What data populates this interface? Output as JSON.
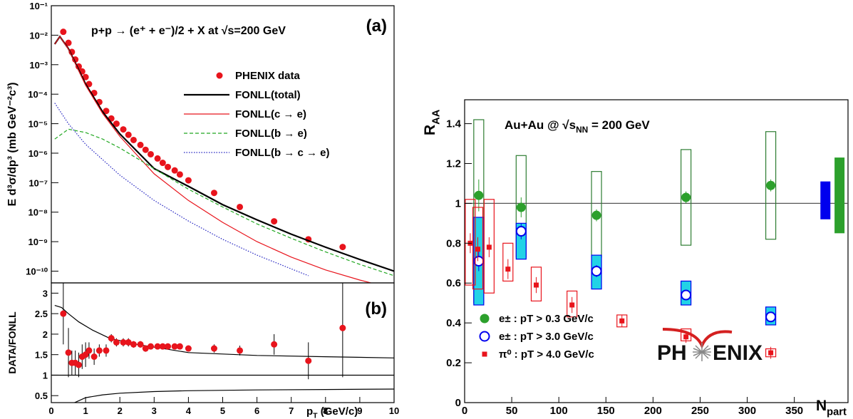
{
  "chart_data": [
    {
      "type": "line",
      "label": "(a)",
      "title": "p+p → (e⁺ + e⁻)/2 + X at √s=200 GeV",
      "y_label": "E d³σ/dp³ (mb GeV⁻²c³)",
      "log_y": true,
      "legend": "upper right",
      "xlim": [
        0,
        10
      ],
      "ylim": [
        4e-11,
        0.1
      ],
      "yticks": [
        {
          "value": 1e-10,
          "label": "10⁻¹⁰"
        },
        {
          "value": 1e-09,
          "label": "10⁻⁹"
        },
        {
          "value": 1e-08,
          "label": "10⁻⁸"
        },
        {
          "value": 1e-07,
          "label": "10⁻⁷"
        },
        {
          "value": 1e-06,
          "label": "10⁻⁶"
        },
        {
          "value": 1e-05,
          "label": "10⁻⁵"
        },
        {
          "value": 0.0001,
          "label": "10⁻⁴"
        },
        {
          "value": 0.001,
          "label": "10⁻³"
        },
        {
          "value": 0.01,
          "label": "10⁻²"
        },
        {
          "value": 0.1,
          "label": "10⁻¹"
        }
      ],
      "series": [
        {
          "name": "PHENIX data",
          "color": "#e8141c",
          "style": "markers",
          "x": [
            0.35,
            0.5,
            0.6,
            0.7,
            0.8,
            0.9,
            1.0,
            1.1,
            1.25,
            1.4,
            1.6,
            1.75,
            1.9,
            2.1,
            2.25,
            2.4,
            2.6,
            2.75,
            2.9,
            3.1,
            3.25,
            3.4,
            3.6,
            3.75,
            4.0,
            4.75,
            5.5,
            6.5,
            7.5,
            8.5
          ],
          "values": [
            0.013,
            0.0055,
            0.0027,
            0.0015,
            0.00087,
            0.00059,
            0.00038,
            0.00022,
            0.00011,
            5.4e-05,
            2.7e-05,
            1.5e-05,
            1e-05,
            6.4e-06,
            4.2e-06,
            2.8e-06,
            1.9e-06,
            1.3e-06,
            9.2e-07,
            6.6e-07,
            4.7e-07,
            3.4e-07,
            2.6e-07,
            1.9e-07,
            1.2e-07,
            4.5e-08,
            1.5e-08,
            4.9e-09,
            1.2e-09,
            6.6e-10
          ]
        },
        {
          "name": "FONLL(total)",
          "color": "#000000",
          "style": "solid",
          "x": [
            0.1,
            0.25,
            0.5,
            1,
            1.5,
            2,
            3,
            4,
            5,
            6,
            7,
            8,
            9,
            10
          ],
          "values": [
            0.005,
            0.009,
            0.0035,
            0.00022,
            2.5e-05,
            4.5e-06,
            3e-07,
            7.5e-08,
            1.8e-08,
            5.5e-09,
            1.8e-09,
            6.5e-10,
            2.5e-10,
            1e-10
          ]
        },
        {
          "name": "FONLL(c → e)",
          "color": "#e8141c",
          "style": "solid",
          "x": [
            0.1,
            0.25,
            0.5,
            1,
            1.5,
            2,
            3,
            4,
            5,
            6,
            7,
            8,
            9,
            10
          ],
          "values": [
            0.005,
            0.009,
            0.0034,
            0.0002,
            2.2e-05,
            3.7e-06,
            2e-07,
            2.5e-08,
            4.5e-09,
            1e-09,
            3e-10,
            1.1e-10,
            5e-11,
            2.5e-11
          ]
        },
        {
          "name": "FONLL(b → e)",
          "color": "#22a822",
          "style": "dashed",
          "x": [
            0.1,
            0.5,
            1,
            1.5,
            2,
            3,
            4,
            5,
            6,
            7,
            8,
            9,
            10
          ],
          "values": [
            3e-06,
            6.5e-06,
            5e-06,
            3e-06,
            1.5e-06,
            3e-07,
            6e-08,
            1.5e-08,
            4e-09,
            1.3e-09,
            4.5e-10,
            1.7e-10,
            7e-11
          ]
        },
        {
          "name": "FONLL(b → c → e)",
          "color": "#2020c0",
          "style": "dotted",
          "x": [
            0.1,
            0.5,
            1,
            1.5,
            2,
            3,
            4,
            5,
            6,
            7,
            7.5
          ],
          "values": [
            5e-05,
            1e-05,
            2e-06,
            6e-07,
            1.8e-07,
            2.5e-08,
            5e-09,
            1.2e-09,
            3.5e-10,
            1.2e-10,
            7e-11
          ]
        }
      ]
    },
    {
      "type": "line",
      "label": "(b)",
      "y_label": "DATA/FONLL",
      "x_label": {
        "main": "p",
        "sub": "T",
        "rest": " (GeV/c)"
      },
      "xlim": [
        0,
        10
      ],
      "xticks": [
        0,
        1,
        2,
        3,
        4,
        5,
        6,
        7,
        8,
        9,
        10
      ],
      "ylim": [
        0.33,
        3.25
      ],
      "yticks": [
        0.5,
        1,
        1.5,
        2,
        2.5,
        3
      ],
      "series": [
        {
          "color": "#000000",
          "style": "solid",
          "x": [
            0,
            10
          ],
          "values": [
            1,
            1
          ]
        },
        {
          "color": "#000000",
          "style": "solid",
          "x": [
            0.1,
            0.3,
            0.5,
            0.8,
            1.2,
            1.7,
            2.5,
            4,
            6,
            8,
            10
          ],
          "values": [
            2.7,
            2.65,
            2.5,
            2.3,
            2.1,
            1.9,
            1.75,
            1.55,
            1.48,
            1.45,
            1.42
          ]
        },
        {
          "color": "#000000",
          "style": "solid",
          "x": [
            0.6,
            1,
            1.5,
            2,
            3,
            4,
            6,
            8,
            10
          ],
          "values": [
            0.3,
            0.45,
            0.52,
            0.56,
            0.6,
            0.62,
            0.64,
            0.65,
            0.66
          ]
        },
        {
          "color": "#e8141c",
          "style": "markers",
          "x": [
            0.35,
            0.5,
            0.6,
            0.7,
            0.8,
            0.9,
            1.0,
            1.1,
            1.25,
            1.4,
            1.6,
            1.75,
            1.9,
            2.1,
            2.25,
            2.4,
            2.6,
            2.75,
            2.9,
            3.1,
            3.25,
            3.4,
            3.6,
            3.75,
            4.0,
            4.75,
            5.5,
            6.5,
            7.5,
            8.5
          ],
          "values": [
            2.5,
            1.55,
            1.3,
            1.3,
            1.25,
            1.45,
            1.5,
            1.6,
            1.45,
            1.6,
            1.6,
            1.9,
            1.8,
            1.8,
            1.8,
            1.75,
            1.75,
            1.65,
            1.7,
            1.7,
            1.7,
            1.7,
            1.7,
            1.7,
            1.65,
            1.65,
            1.6,
            1.75,
            1.35,
            2.15
          ],
          "errors": [
            0.75,
            0.6,
            0.3,
            0.3,
            0.3,
            0.3,
            0.3,
            0.2,
            0.2,
            0.15,
            0.15,
            0.1,
            0.1,
            0.1,
            0.1,
            0.08,
            0.08,
            0.08,
            0.06,
            0.06,
            0.06,
            0.06,
            0.06,
            0.06,
            0.06,
            0.1,
            0.12,
            0.25,
            0.45,
            1.2
          ]
        }
      ]
    },
    {
      "type": "scatter",
      "title": {
        "main": "Au+Au @ √s",
        "sub": "NN",
        "rest": " = 200 GeV"
      },
      "x_label": {
        "main": "N",
        "sub": "part"
      },
      "y_label": {
        "main": "R",
        "sub": "AA"
      },
      "xlim": [
        0,
        407
      ],
      "xticks": [
        0,
        50,
        100,
        150,
        200,
        250,
        300,
        350
      ],
      "ylim": [
        0,
        1.52
      ],
      "yticks": [
        0,
        0.2,
        0.4,
        0.6,
        0.8,
        1,
        1.2,
        1.4
      ],
      "reference": 1,
      "legend": "lower left",
      "series": [
        {
          "name": "e± : pT > 0.3 GeV/c",
          "marker": "circle-filled",
          "color": "#2ca02c",
          "box_color": "#2e7d32",
          "box_fill": "none",
          "x": [
            15,
            60,
            140,
            235,
            325
          ],
          "values": [
            1.04,
            0.98,
            0.94,
            1.03,
            1.09
          ],
          "errors": [
            0.08,
            0.05,
            0.03,
            0.03,
            0.03
          ],
          "box_low": [
            0.5,
            0.73,
            0.73,
            0.79,
            0.82
          ],
          "box_high": [
            1.42,
            1.24,
            1.16,
            1.27,
            1.36
          ]
        },
        {
          "name": "e± : pT > 3.0 GeV/c",
          "marker": "circle-open",
          "color": "#0000ee",
          "box_color": "#0000ee",
          "box_fill": "#22d3e6",
          "x": [
            15,
            60,
            140,
            235,
            325
          ],
          "values": [
            0.71,
            0.86,
            0.66,
            0.54,
            0.43
          ],
          "errors": [
            0.05,
            0.04,
            0.03,
            0.02,
            0.02
          ],
          "box_low": [
            0.49,
            0.72,
            0.57,
            0.49,
            0.39
          ],
          "box_high": [
            0.93,
            0.9,
            0.74,
            0.61,
            0.48
          ]
        },
        {
          "name": "π⁰ : pT > 4.0 GeV/c",
          "marker": "square",
          "color": "#e8141c",
          "box_color": "#e8141c",
          "box_fill": "none",
          "x": [
            6,
            14,
            26,
            46,
            76,
            114,
            167,
            235,
            325
          ],
          "values": [
            0.8,
            0.77,
            0.78,
            0.67,
            0.59,
            0.49,
            0.41,
            0.33,
            0.25
          ],
          "errors": [
            0.05,
            0.06,
            0.05,
            0.05,
            0.04,
            0.04,
            0.03,
            0.03,
            0.03
          ],
          "box_low": [
            0.59,
            0.57,
            0.55,
            0.61,
            0.51,
            0.43,
            0.38,
            0.31,
            0.23
          ],
          "box_high": [
            1.02,
            0.98,
            1.02,
            0.8,
            0.68,
            0.56,
            0.44,
            0.37,
            0.27
          ]
        }
      ],
      "norm_boxes": [
        {
          "x": 383,
          "low": 0.92,
          "high": 1.11,
          "color": "#0000ee"
        },
        {
          "x": 398,
          "low": 0.85,
          "high": 1.23,
          "color": "#2ca02c"
        }
      ],
      "logo": {
        "left": "PH",
        "right": "ENIX"
      }
    }
  ]
}
